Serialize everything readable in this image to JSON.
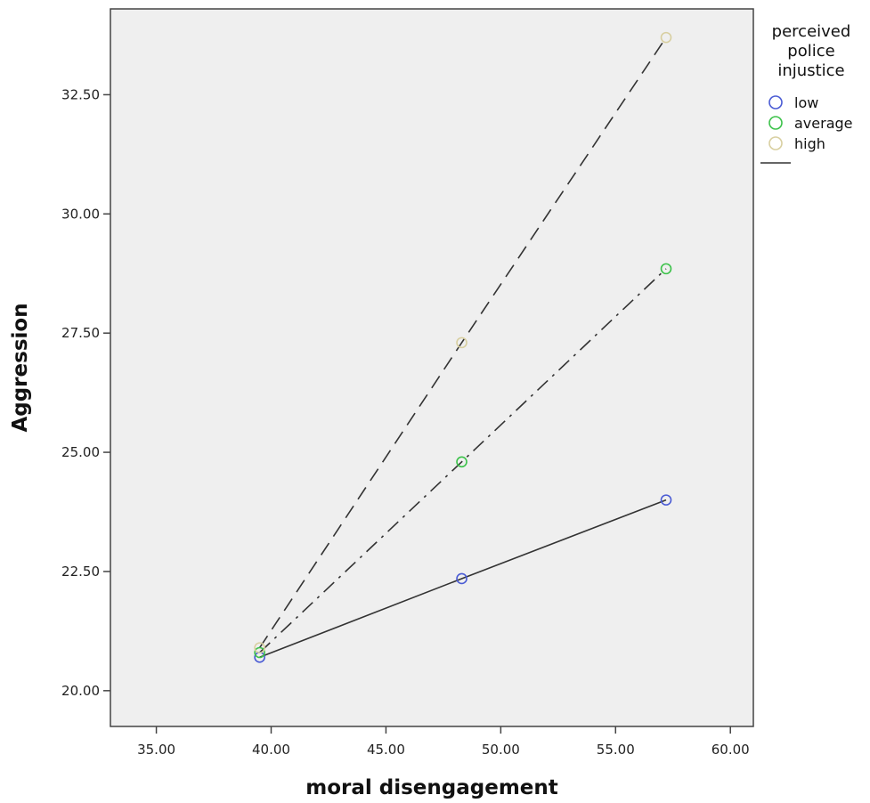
{
  "chart_data": {
    "type": "line",
    "xlabel": "moral disengagement",
    "ylabel": "Aggression",
    "xlim": [
      33.0,
      61.0
    ],
    "ylim": [
      19.25,
      34.3
    ],
    "xticks": [
      35,
      40,
      45,
      50,
      55,
      60
    ],
    "xtick_labels": [
      "35.00",
      "40.00",
      "45.00",
      "50.00",
      "55.00",
      "60.00"
    ],
    "yticks": [
      20,
      22.5,
      25,
      27.5,
      30,
      32.5
    ],
    "ytick_labels": [
      "20.00",
      "22.50",
      "25.00",
      "27.50",
      "30.00",
      "32.50"
    ],
    "grid": false,
    "legend": {
      "title_lines": [
        "perceived",
        "police",
        "injustice"
      ],
      "placement": "right"
    },
    "series": [
      {
        "name": "low",
        "x": [
          39.5,
          48.3,
          57.2
        ],
        "y": [
          20.7,
          22.35,
          24.0
        ],
        "marker_color": "#4a5bd4",
        "line_style": "solid"
      },
      {
        "name": "average",
        "x": [
          39.5,
          48.3,
          57.2
        ],
        "y": [
          20.8,
          24.8,
          28.85
        ],
        "marker_color": "#3cc24a",
        "line_style": "dashdot"
      },
      {
        "name": "high",
        "x": [
          39.5,
          48.3,
          57.2
        ],
        "y": [
          20.9,
          27.3,
          33.7
        ],
        "marker_color": "#d8cfa0",
        "line_style": "dashed"
      }
    ],
    "colors": {
      "plot_background": "#efefef",
      "line": "#333333",
      "frame": "#444444"
    }
  }
}
